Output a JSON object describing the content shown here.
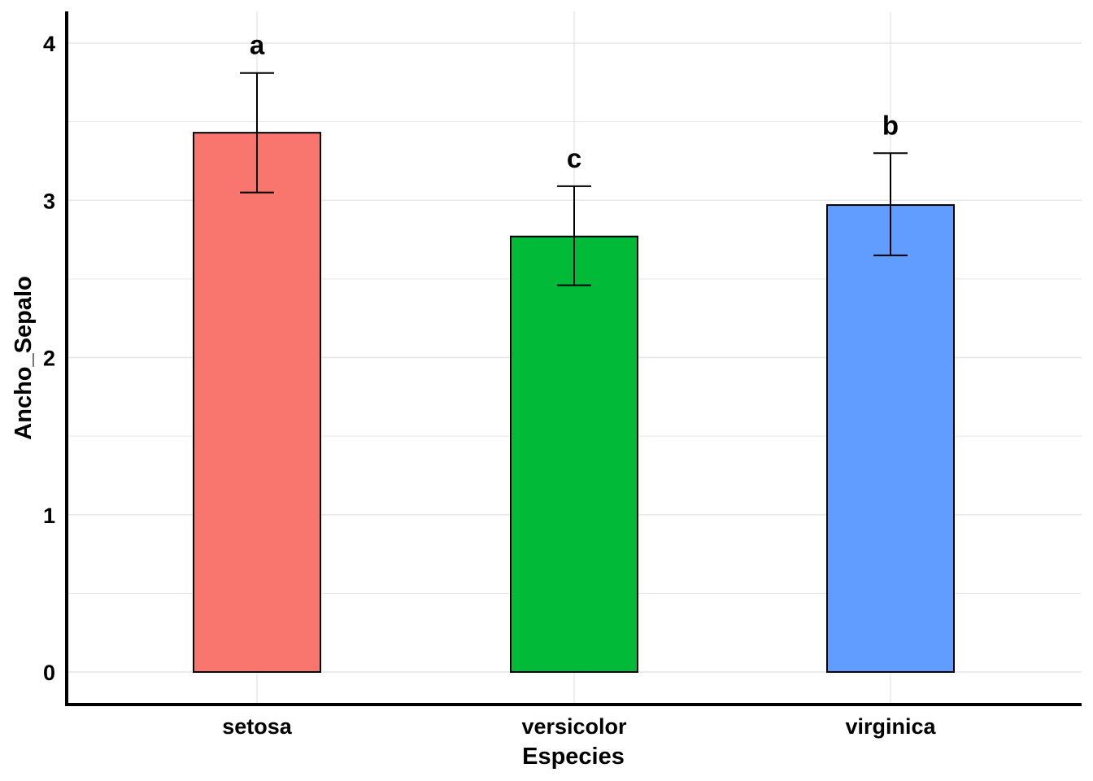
{
  "chart_data": {
    "type": "bar",
    "categories": [
      "setosa",
      "versicolor",
      "virginica"
    ],
    "values": [
      3.43,
      2.77,
      2.97
    ],
    "error_low": [
      3.05,
      2.46,
      2.65
    ],
    "error_high": [
      3.81,
      3.09,
      3.3
    ],
    "significance_labels": [
      "a",
      "c",
      "b"
    ],
    "colors": [
      "#F8766D",
      "#00BA38",
      "#619CFF"
    ],
    "xlabel": "Especies",
    "ylabel": "Ancho_Sepalo",
    "ylim": [
      0,
      4
    ],
    "yticks": [
      0,
      1,
      2,
      3,
      4
    ],
    "grid": true
  }
}
